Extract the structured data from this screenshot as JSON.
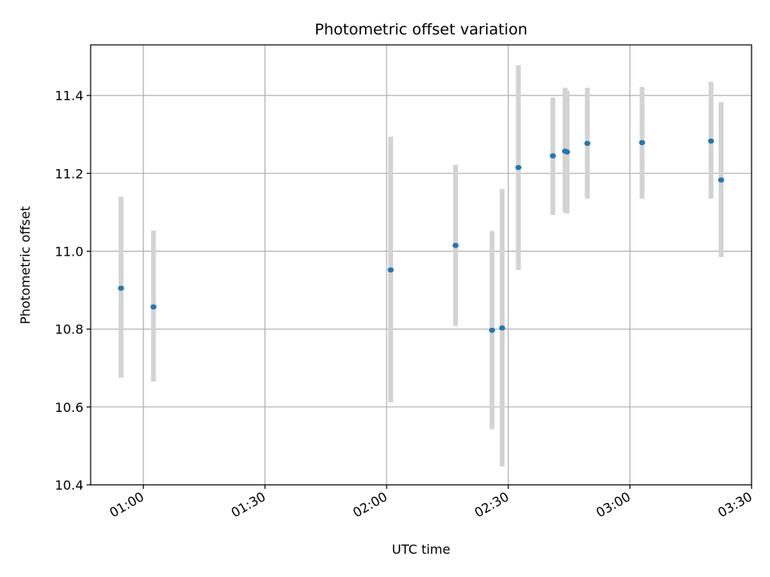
{
  "chart_data": {
    "type": "scatter",
    "title": "Photometric offset variation",
    "xlabel": "UTC time",
    "ylabel": "Photometric offset",
    "grid": true,
    "xlim": [
      "00:47:00",
      "03:30:00"
    ],
    "ylim": [
      10.4,
      11.53
    ],
    "x_ticks": [
      "01:00",
      "01:30",
      "02:00",
      "02:30",
      "03:00",
      "03:30"
    ],
    "y_ticks": [
      "10.4",
      "10.6",
      "10.8",
      "11.0",
      "11.2",
      "11.4"
    ],
    "colors": {
      "point": "#1f77b4",
      "errorbar": "#d3d3d3",
      "grid": "#b0b0b0"
    },
    "series": [
      {
        "x": [
          "00:54:30",
          "01:02:30",
          "02:01:00",
          "02:17:00",
          "02:26:00",
          "02:28:30",
          "02:32:30",
          "02:41:00",
          "02:44:00",
          "02:44:30",
          "02:49:30",
          "03:03:00",
          "03:20:00",
          "03:22:30"
        ],
        "y": [
          10.905,
          10.857,
          10.952,
          11.015,
          10.797,
          10.803,
          11.215,
          11.245,
          11.257,
          11.255,
          11.277,
          11.279,
          11.283,
          11.183
        ],
        "err_low": [
          10.675,
          10.665,
          10.612,
          10.808,
          10.543,
          10.447,
          10.952,
          11.093,
          11.1,
          11.097,
          11.135,
          11.135,
          11.135,
          10.985
        ],
        "err_high": [
          11.14,
          11.053,
          11.294,
          11.222,
          11.052,
          11.16,
          11.478,
          11.395,
          11.42,
          11.413,
          11.42,
          11.422,
          11.435,
          11.383
        ]
      }
    ]
  }
}
